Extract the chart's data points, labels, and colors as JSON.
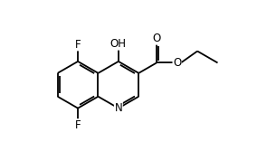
{
  "bg_color": "#ffffff",
  "bond_color": "#000000",
  "text_color": "#000000",
  "bond_lw": 1.3,
  "font_size": 8.5,
  "figsize": [
    2.84,
    1.78
  ],
  "dpi": 100,
  "xlim": [
    -2.6,
    5.2
  ],
  "ylim": [
    -2.5,
    2.8
  ]
}
